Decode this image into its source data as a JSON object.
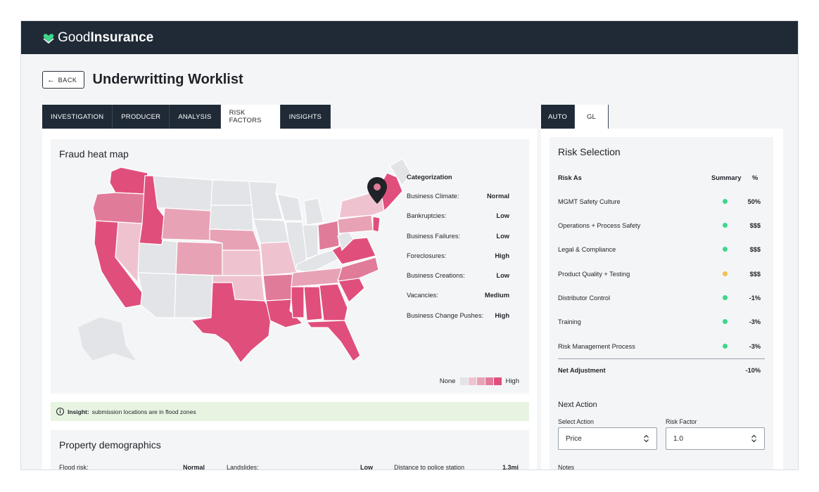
{
  "app": {
    "logo_light": "Good",
    "logo_bold": "Insurance"
  },
  "header": {
    "back_label": "BACK",
    "title": "Underwritting Worklist"
  },
  "left_tabs": [
    "INVESTIGATION",
    "PRODUCER",
    "ANALYSIS",
    "RISK FACTORS",
    "INSIGHTS"
  ],
  "right_tabs": [
    "AUTO",
    "GL"
  ],
  "heatmap": {
    "title": "Fraud heat map",
    "categorization_title": "Categorization",
    "categories": [
      {
        "label": "Business Climate:",
        "value": "Normal"
      },
      {
        "label": "Bankruptcies:",
        "value": "Low"
      },
      {
        "label": "Business Failures:",
        "value": "Low"
      },
      {
        "label": "Foreclosures:",
        "value": "High"
      },
      {
        "label": "Business Creations:",
        "value": "Low"
      },
      {
        "label": "Vacancies:",
        "value": "Medium"
      },
      {
        "label": "Business Change Pushes:",
        "value": "High"
      }
    ],
    "legend_low": "None",
    "legend_high": "High",
    "legend_colors": [
      "#e2e4e7",
      "#eec3cf",
      "#e8a2b6",
      "#e07c9a",
      "#e04f7c"
    ]
  },
  "insight": {
    "label": "Insight:",
    "text": "submission locations are in flood zones"
  },
  "demographics": {
    "title": "Property demographics",
    "items": [
      {
        "label": "Flood risk:",
        "value": "Normal"
      },
      {
        "label": "Landslides:",
        "value": "Low"
      },
      {
        "label": "Distance to police station",
        "value": "1.3mi"
      }
    ]
  },
  "risk": {
    "title": "Risk Selection",
    "col_risk": "Risk As",
    "col_summary": "Summary",
    "col_pct": "%",
    "rows": [
      {
        "name": "MGMT Safety Culture",
        "status": "#3dd68c",
        "value": "50%"
      },
      {
        "name": "Operations + Process Safety",
        "status": "#3dd68c",
        "value": "$$$"
      },
      {
        "name": "Legal & Compliance",
        "status": "#3dd68c",
        "value": "$$$"
      },
      {
        "name": "Product Quality + Testing",
        "status": "#f2c14e",
        "value": "$$$"
      },
      {
        "name": "Distributor Control",
        "status": "#3dd68c",
        "value": "-1%"
      },
      {
        "name": "Training",
        "status": "#3dd68c",
        "value": "-3%"
      },
      {
        "name": "Risk Management Process",
        "status": "#3dd68c",
        "value": "-3%"
      }
    ],
    "net_label": "Net Adjustment",
    "net_value": "-10%"
  },
  "next_action": {
    "title": "Next Action",
    "select_label": "Select Action",
    "select_value": "Price",
    "factor_label": "Risk Factor",
    "factor_value": "1.0",
    "notes_label": "Notes"
  },
  "colors": {
    "brand": "#1f2a36",
    "accent": "#3dd68c",
    "heat_high": "#e04f7c"
  }
}
